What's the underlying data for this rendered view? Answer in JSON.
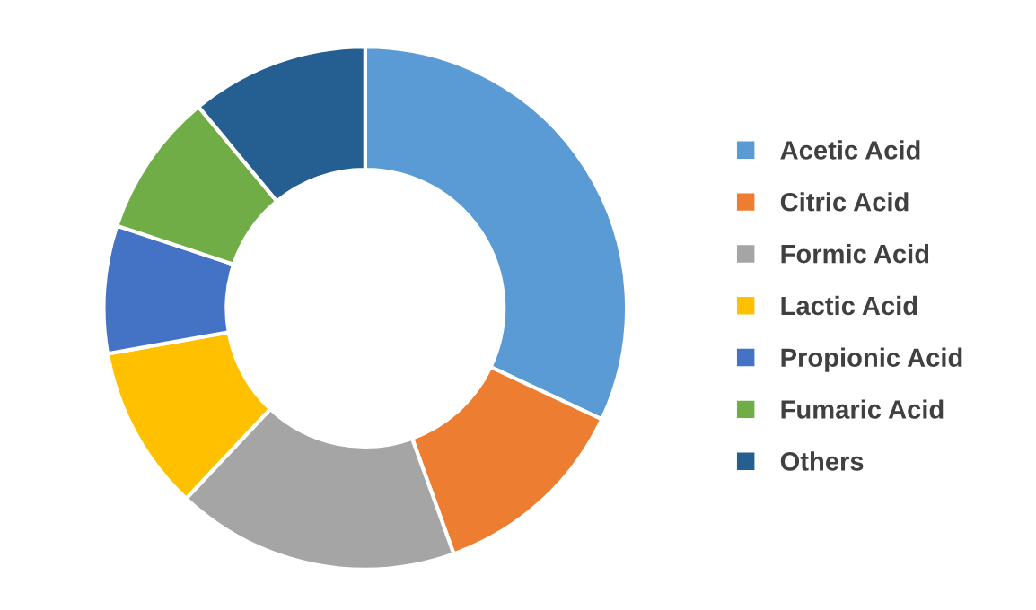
{
  "chart_data": {
    "type": "donut",
    "categories": [
      "Acetic Acid",
      "Citric Acid",
      "Formic Acid",
      "Lactic Acid",
      "Propionic Acid",
      "Fumaric Acid",
      "Others"
    ],
    "values": [
      32.0,
      12.5,
      17.5,
      10.2,
      7.9,
      8.9,
      11.0
    ],
    "colors": [
      "#5b9bd5",
      "#ed7d31",
      "#a5a5a5",
      "#ffc000",
      "#4472c4",
      "#70ad47",
      "#255e91"
    ],
    "legend": "right"
  }
}
